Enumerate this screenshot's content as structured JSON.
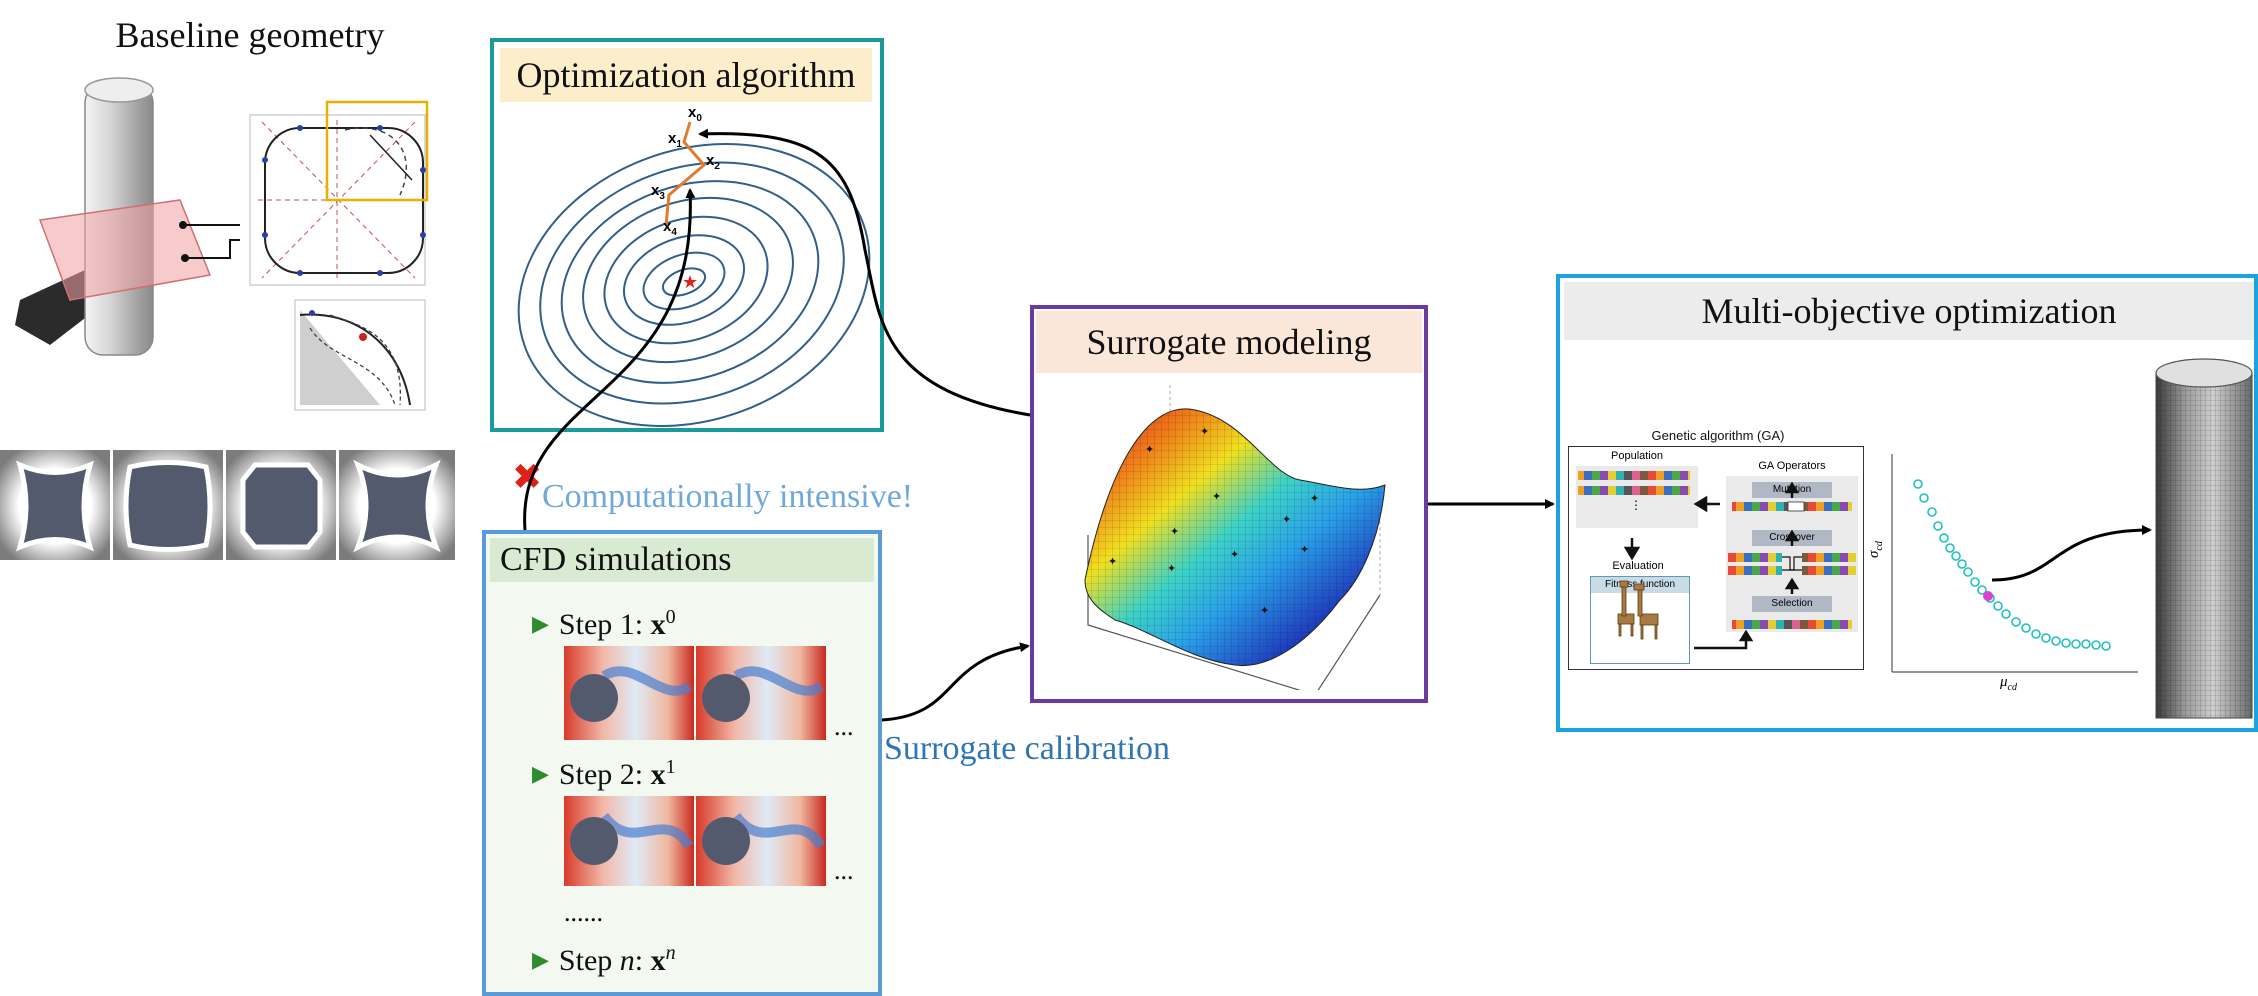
{
  "titles": {
    "baseline": "Baseline geometry",
    "optimization": "Optimization algorithm",
    "surrogate": "Surrogate modeling",
    "multiobjective": "Multi-objective optimization",
    "cfd": "CFD simulations"
  },
  "labels": {
    "computationally_intensive": "Computationally intensive!",
    "surrogate_calibration": "Surrogate calibration",
    "ellipsis_dots": "......",
    "cont": "..."
  },
  "cfd_steps": [
    {
      "prefix": "Step 1: ",
      "var": "x",
      "sup": "0"
    },
    {
      "prefix": "Step 2: ",
      "var": "x",
      "sup": "1"
    },
    {
      "prefix": "Step ",
      "italic": "n",
      "colon": ": ",
      "var": "x",
      "sup": "n"
    }
  ],
  "opt_points": [
    {
      "label": "x",
      "sub": "0"
    },
    {
      "label": "x",
      "sub": "1"
    },
    {
      "label": "x",
      "sub": "2"
    },
    {
      "label": "x",
      "sub": "3"
    },
    {
      "label": "x",
      "sub": "4"
    }
  ],
  "ga": {
    "title": "Genetic algorithm (GA)",
    "population": "Population",
    "operators": "GA Operators",
    "mutation": "Mutation",
    "crossover": "Crossover",
    "selection": "Selection",
    "evaluation": "Evaluation",
    "fitness": "Fitness function",
    "vdots": "⋮"
  },
  "pareto": {
    "ylabel": "σ",
    "ylabel_sub": "cd",
    "xlabel": "μ",
    "xlabel_sub": "cd"
  },
  "colors": {
    "opt_border": "#1a9a9a",
    "opt_header": "#fdeecb",
    "surr_border": "#6b3aa0",
    "surr_header": "#fbe6da",
    "mo_border": "#1aa3e0",
    "mo_header": "#ececec",
    "cfd_border": "#5b9bd5",
    "cfd_header": "#d9ead3",
    "cfd_bg": "#f3f8f1",
    "contour": "#2f5f8a",
    "path": "#e07b30",
    "label_blue": "#2e75b6",
    "label_lightblue": "#6fa8dc",
    "cross_red": "#e0201a",
    "bullet_green": "#2e8b2e"
  }
}
